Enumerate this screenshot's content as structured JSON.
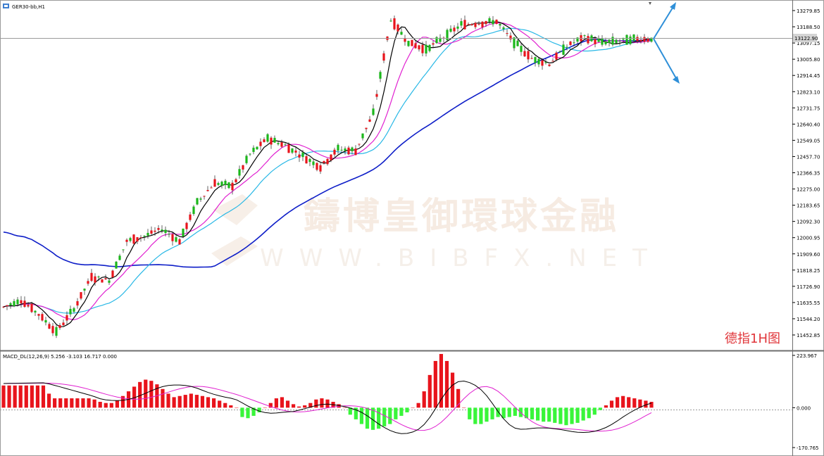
{
  "window": {
    "title": "GER30-bb,H1"
  },
  "badge": {
    "text": "德指1H图",
    "color": "#e0353a"
  },
  "watermark": {
    "text": "鑄博皇御環球金融",
    "url": "WWW.BIBFX.NET"
  },
  "chart_data": [
    {
      "type": "candlestick",
      "title": "GER30-bb,H1",
      "ylim": [
        11400,
        13330
      ],
      "y_ticks": [
        "13279.85",
        "13188.50",
        "13097.15",
        "13005.80",
        "12914.45",
        "12823.10",
        "12731.75",
        "12640.40",
        "12549.05",
        "12457.70",
        "12366.35",
        "12275.00",
        "12183.65",
        "12092.30",
        "12000.95",
        "11909.60",
        "11818.25",
        "11726.90",
        "11635.55",
        "11544.20",
        "11452.85"
      ],
      "current_price": "13122.90",
      "colors": {
        "up": "#e8141c",
        "down": "#1bb81b",
        "ma_fast": "#000000",
        "ma_mid": "#e020d0",
        "ma_slow": "#29b8e6",
        "ma_long": "#0e1ec8",
        "forecast": "#2e8fd8"
      },
      "ohlc_sample": [
        [
          11580,
          11640,
          11560,
          11610
        ],
        [
          11610,
          11670,
          11590,
          11650
        ],
        [
          11650,
          11670,
          11560,
          11570
        ],
        [
          11570,
          11600,
          11440,
          11470
        ],
        [
          11470,
          11620,
          11440,
          11600
        ],
        [
          11600,
          11800,
          11580,
          11780
        ],
        [
          11780,
          11840,
          11720,
          11760
        ],
        [
          11760,
          12000,
          11740,
          11980
        ],
        [
          11980,
          12030,
          11960,
          12010
        ],
        [
          12010,
          12080,
          11960,
          12050
        ],
        [
          12050,
          12140,
          11960,
          11980
        ],
        [
          11980,
          12220,
          11960,
          12200
        ],
        [
          12200,
          12330,
          12180,
          12310
        ],
        [
          12310,
          12340,
          12260,
          12290
        ],
        [
          12290,
          12500,
          12270,
          12470
        ],
        [
          12470,
          12580,
          12450,
          12560
        ],
        [
          12560,
          12580,
          12500,
          12520
        ],
        [
          12520,
          12540,
          12440,
          12460
        ],
        [
          12460,
          12480,
          12360,
          12400
        ],
        [
          12400,
          12520,
          12380,
          12500
        ],
        [
          12500,
          12520,
          12470,
          12490
        ],
        [
          12490,
          12720,
          12480,
          12700
        ],
        [
          12700,
          13270,
          12680,
          13230
        ],
        [
          13230,
          13290,
          13090,
          13100
        ],
        [
          13100,
          13140,
          13030,
          13060
        ],
        [
          13060,
          13150,
          13040,
          13130
        ],
        [
          13130,
          13220,
          13110,
          13200
        ],
        [
          13200,
          13230,
          13170,
          13210
        ],
        [
          13210,
          13250,
          13180,
          13220
        ],
        [
          13220,
          13230,
          13080,
          13100
        ],
        [
          13100,
          13110,
          12990,
          13010
        ],
        [
          13010,
          13040,
          12960,
          12980
        ],
        [
          12980,
          13090,
          12960,
          13080
        ],
        [
          13080,
          13140,
          13070,
          13130
        ],
        [
          13130,
          13140,
          13080,
          13100
        ],
        [
          13100,
          13130,
          13080,
          13110
        ],
        [
          13110,
          13125,
          13100,
          13120
        ]
      ]
    },
    {
      "type": "macd",
      "title": "MACD_DL(12,26,9) 5.256 -3.103 16.717 0.000",
      "ylim": [
        -170.765,
        223.967
      ],
      "y_ticks": [
        "223.967",
        "0.000",
        "-170.765"
      ],
      "histogram": [
        95,
        95,
        95,
        95,
        95,
        95,
        95,
        95,
        60,
        40,
        40,
        40,
        40,
        40,
        40,
        40,
        35,
        25,
        20,
        20,
        30,
        50,
        70,
        90,
        110,
        120,
        115,
        100,
        80,
        60,
        45,
        50,
        55,
        60,
        55,
        50,
        45,
        40,
        30,
        20,
        10,
        0,
        -40,
        -45,
        -35,
        -20,
        0,
        20,
        40,
        45,
        30,
        15,
        5,
        10,
        20,
        35,
        40,
        35,
        25,
        15,
        0,
        -30,
        -50,
        -70,
        -90,
        -95,
        -90,
        -80,
        -70,
        -50,
        -35,
        -20,
        0,
        20,
        70,
        140,
        200,
        230,
        200,
        150,
        80,
        0,
        -50,
        -70,
        -70,
        -60,
        -50,
        -40,
        -45,
        -40,
        -35,
        -40,
        -45,
        -50,
        -55,
        -60,
        -60,
        -65,
        -70,
        -75,
        -70,
        -65,
        -55,
        -45,
        -30,
        -10,
        10,
        30,
        45,
        50,
        45,
        40,
        35,
        30,
        25
      ],
      "colors": {
        "positive": "#e8141c",
        "negative": "#39f53a",
        "macd_line": "#000000",
        "signal_line": "#e020d0"
      }
    }
  ]
}
